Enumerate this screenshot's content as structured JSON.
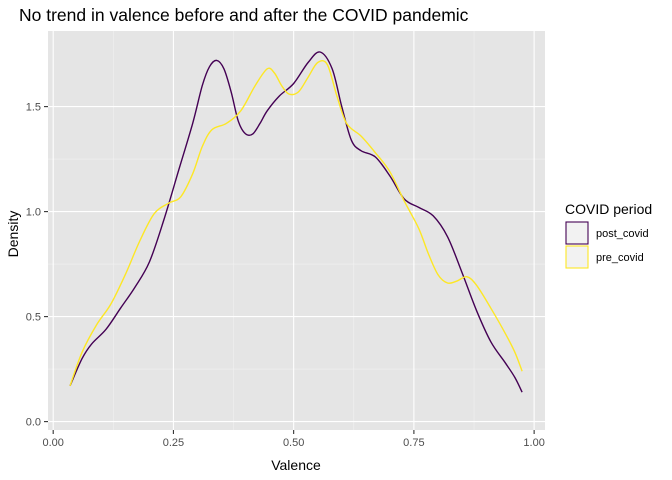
{
  "chart_data": {
    "type": "line",
    "title": "No trend in valence before and after the COVID pandemic",
    "xlabel": "Valence",
    "ylabel": "Density",
    "xlim": [
      0.0,
      1.0
    ],
    "ylim": [
      -0.04,
      1.86
    ],
    "x_ticks": [
      0.0,
      0.25,
      0.5,
      0.75,
      1.0
    ],
    "x_tick_labels": [
      "0.00",
      "0.25",
      "0.50",
      "0.75",
      "1.00"
    ],
    "y_ticks": [
      0.0,
      0.5,
      1.0,
      1.5
    ],
    "y_tick_labels": [
      "0.0",
      "0.5",
      "1.0",
      "1.5"
    ],
    "grid": true,
    "background": "#e5e5e5",
    "legend": {
      "title": "COVID period",
      "placement": "right"
    },
    "series": [
      {
        "name": "post_covid",
        "color": "#440154",
        "points": [
          [
            0.035,
            0.17
          ],
          [
            0.06,
            0.3
          ],
          [
            0.08,
            0.37
          ],
          [
            0.11,
            0.44
          ],
          [
            0.14,
            0.54
          ],
          [
            0.17,
            0.64
          ],
          [
            0.2,
            0.76
          ],
          [
            0.23,
            0.96
          ],
          [
            0.26,
            1.19
          ],
          [
            0.29,
            1.42
          ],
          [
            0.31,
            1.6
          ],
          [
            0.325,
            1.69
          ],
          [
            0.34,
            1.72
          ],
          [
            0.355,
            1.68
          ],
          [
            0.37,
            1.57
          ],
          [
            0.385,
            1.43
          ],
          [
            0.4,
            1.37
          ],
          [
            0.415,
            1.37
          ],
          [
            0.43,
            1.42
          ],
          [
            0.445,
            1.48
          ],
          [
            0.47,
            1.55
          ],
          [
            0.5,
            1.61
          ],
          [
            0.53,
            1.71
          ],
          [
            0.555,
            1.76
          ],
          [
            0.58,
            1.68
          ],
          [
            0.6,
            1.5
          ],
          [
            0.62,
            1.34
          ],
          [
            0.64,
            1.29
          ],
          [
            0.67,
            1.26
          ],
          [
            0.7,
            1.17
          ],
          [
            0.73,
            1.06
          ],
          [
            0.76,
            1.02
          ],
          [
            0.79,
            0.98
          ],
          [
            0.82,
            0.88
          ],
          [
            0.85,
            0.71
          ],
          [
            0.88,
            0.53
          ],
          [
            0.91,
            0.38
          ],
          [
            0.94,
            0.28
          ],
          [
            0.96,
            0.21
          ],
          [
            0.975,
            0.14
          ]
        ]
      },
      {
        "name": "pre_covid",
        "color": "#fde725",
        "points": [
          [
            0.035,
            0.17
          ],
          [
            0.06,
            0.33
          ],
          [
            0.09,
            0.46
          ],
          [
            0.12,
            0.56
          ],
          [
            0.15,
            0.7
          ],
          [
            0.18,
            0.86
          ],
          [
            0.21,
            0.99
          ],
          [
            0.24,
            1.04
          ],
          [
            0.265,
            1.07
          ],
          [
            0.29,
            1.18
          ],
          [
            0.31,
            1.31
          ],
          [
            0.33,
            1.39
          ],
          [
            0.36,
            1.42
          ],
          [
            0.39,
            1.48
          ],
          [
            0.42,
            1.6
          ],
          [
            0.445,
            1.68
          ],
          [
            0.46,
            1.66
          ],
          [
            0.475,
            1.6
          ],
          [
            0.49,
            1.56
          ],
          [
            0.51,
            1.57
          ],
          [
            0.53,
            1.64
          ],
          [
            0.55,
            1.71
          ],
          [
            0.57,
            1.7
          ],
          [
            0.59,
            1.55
          ],
          [
            0.61,
            1.42
          ],
          [
            0.64,
            1.36
          ],
          [
            0.67,
            1.28
          ],
          [
            0.7,
            1.19
          ],
          [
            0.73,
            1.05
          ],
          [
            0.76,
            0.92
          ],
          [
            0.78,
            0.8
          ],
          [
            0.8,
            0.7
          ],
          [
            0.82,
            0.66
          ],
          [
            0.84,
            0.67
          ],
          [
            0.86,
            0.69
          ],
          [
            0.88,
            0.65
          ],
          [
            0.91,
            0.54
          ],
          [
            0.94,
            0.42
          ],
          [
            0.96,
            0.33
          ],
          [
            0.975,
            0.24
          ]
        ]
      }
    ]
  }
}
